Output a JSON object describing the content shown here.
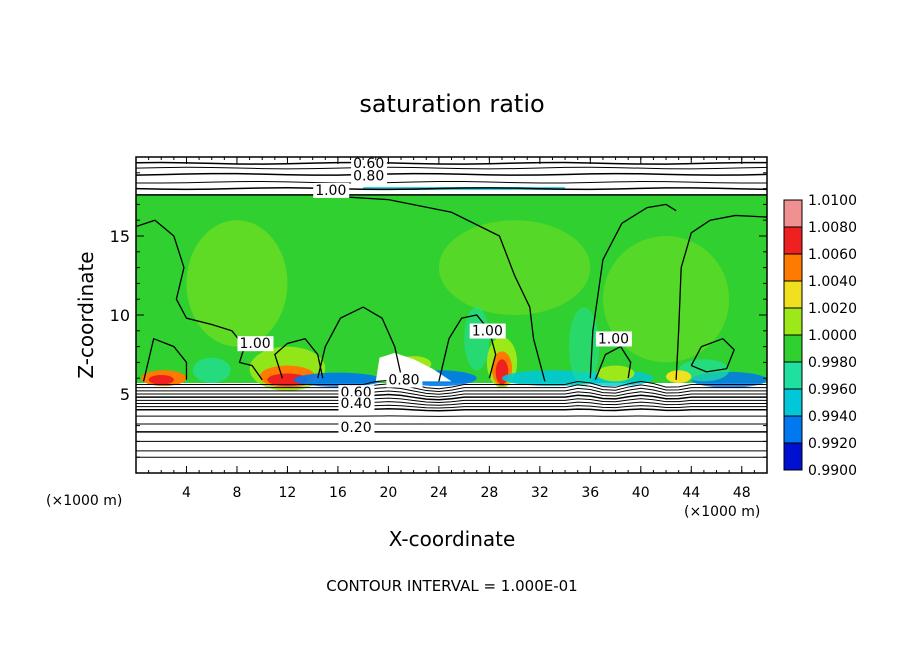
{
  "chart_data": {
    "type": "heatmap",
    "title": "saturation ratio",
    "xlabel": "X-coordinate",
    "ylabel": "Z-coordinate",
    "x_unit_left": "(×1000 m)",
    "x_unit_right": "(×1000 m)",
    "xlim": [
      0,
      50
    ],
    "ylim": [
      0,
      20
    ],
    "x_ticks": [
      "4",
      "8",
      "12",
      "16",
      "20",
      "24",
      "28",
      "32",
      "36",
      "40",
      "44",
      "48"
    ],
    "y_ticks": [
      "5",
      "10",
      "15"
    ],
    "footer": "CONTOUR INTERVAL = 1.000E-01",
    "colorbar": {
      "levels": [
        "1.0100",
        "1.0080",
        "1.0060",
        "1.0040",
        "1.0020",
        "1.0000",
        "0.9980",
        "0.9960",
        "0.9940",
        "0.9920",
        "0.9900"
      ],
      "colors": [
        "#f09090",
        "#ee2020",
        "#ff7a00",
        "#f0e020",
        "#9ce818",
        "#30d030",
        "#20e0a0",
        "#00c8d8",
        "#0078f0",
        "#0010d0",
        "#50008c"
      ]
    },
    "contour_labels": [
      {
        "text": "0.60",
        "x": 17.2,
        "y": 19.3
      },
      {
        "text": "0.80",
        "x": 17.2,
        "y": 18.5
      },
      {
        "text": "1.00",
        "x": 14.2,
        "y": 17.6
      },
      {
        "text": "1.00",
        "x": 8.2,
        "y": 7.9
      },
      {
        "text": "1.00",
        "x": 26.6,
        "y": 8.7
      },
      {
        "text": "1.00",
        "x": 36.6,
        "y": 8.2
      },
      {
        "text": "0.80",
        "x": 20.0,
        "y": 5.6
      },
      {
        "text": "0.60",
        "x": 16.2,
        "y": 4.8
      },
      {
        "text": "0.40",
        "x": 16.2,
        "y": 4.1
      },
      {
        "text": "0.20",
        "x": 16.2,
        "y": 2.6
      }
    ]
  }
}
